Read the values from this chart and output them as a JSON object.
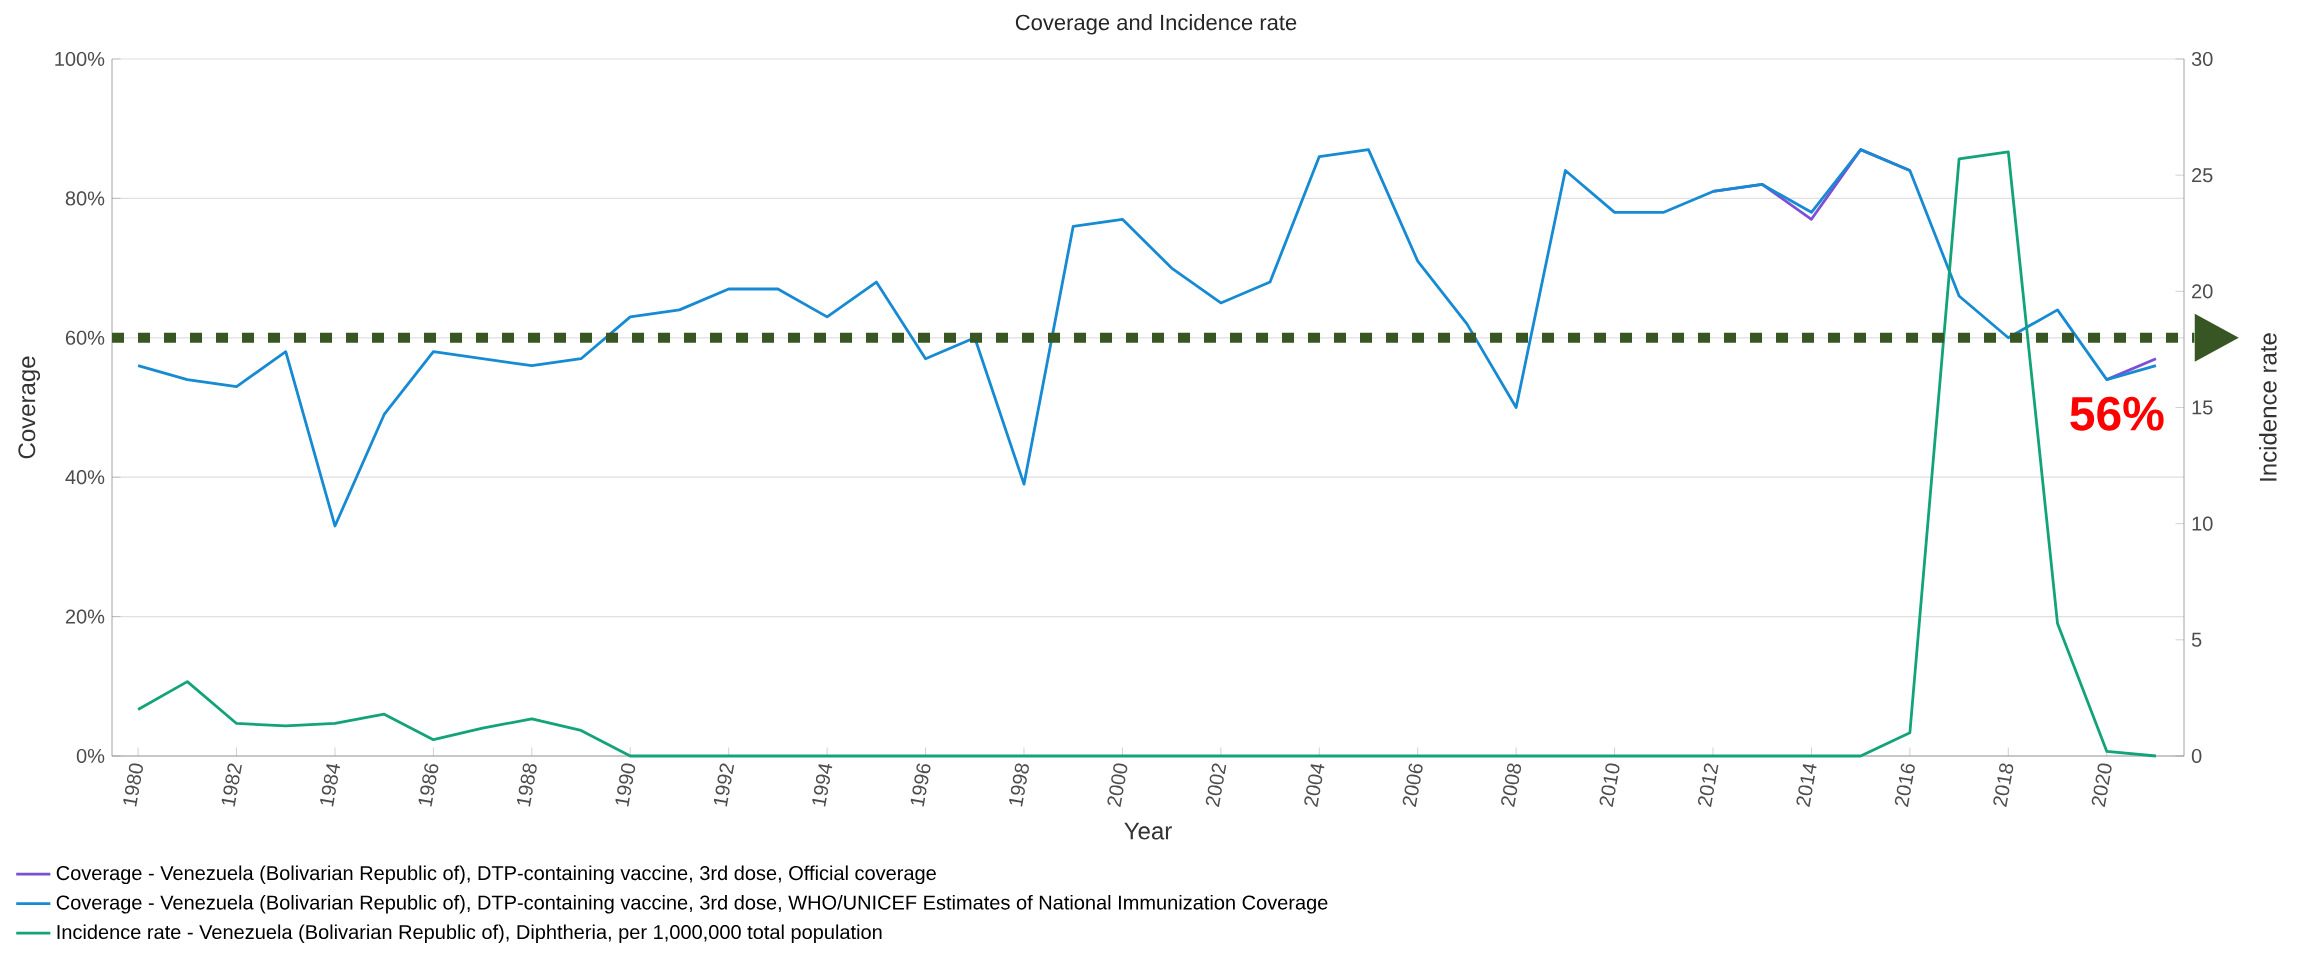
{
  "chart_data": {
    "type": "line",
    "title": "Coverage and Incidence rate",
    "xlabel": "Year",
    "ylabel": "Coverage",
    "y2label": "Incidence rate",
    "x": [
      1980,
      1981,
      1982,
      1983,
      1984,
      1985,
      1986,
      1987,
      1988,
      1989,
      1990,
      1991,
      1992,
      1993,
      1994,
      1995,
      1996,
      1997,
      1998,
      1999,
      2000,
      2001,
      2002,
      2003,
      2004,
      2005,
      2006,
      2007,
      2008,
      2009,
      2010,
      2011,
      2012,
      2013,
      2014,
      2015,
      2016,
      2017,
      2018,
      2019,
      2020,
      2021
    ],
    "series": [
      {
        "name": "Coverage - Venezuela (Bolivarian Republic of), DTP-containing vaccine, 3rd dose, Official coverage",
        "color": "#7b4fd6",
        "values": [
          null,
          null,
          null,
          null,
          null,
          null,
          null,
          null,
          null,
          null,
          null,
          null,
          null,
          null,
          null,
          null,
          null,
          null,
          null,
          null,
          null,
          null,
          null,
          null,
          null,
          null,
          null,
          null,
          null,
          null,
          null,
          null,
          81,
          82,
          77,
          87,
          84,
          null,
          null,
          null,
          54,
          57
        ]
      },
      {
        "name": "Coverage - Venezuela (Bolivarian Republic of), DTP-containing vaccine, 3rd dose, WHO/UNICEF Estimates of National Immunization Coverage",
        "color": "#168ad2",
        "values": [
          56,
          54,
          53,
          58,
          33,
          49,
          58,
          57,
          56,
          57,
          63,
          64,
          67,
          67,
          63,
          68,
          57,
          60,
          39,
          76,
          77,
          70,
          65,
          68,
          86,
          87,
          71,
          62,
          50,
          84,
          78,
          78,
          81,
          82,
          78,
          87,
          84,
          66,
          60,
          64,
          54,
          56
        ]
      },
      {
        "name": "Incidence rate - Venezuela (Bolivarian Republic of), Diphtheria, per 1,000,000 total population",
        "color": "#13a378",
        "axis": "y2",
        "values": [
          2.0,
          3.2,
          1.4,
          1.3,
          1.4,
          1.8,
          0.7,
          1.2,
          1.6,
          1.1,
          0,
          0,
          0,
          0,
          0,
          0,
          0,
          0,
          0,
          0,
          0,
          0,
          0,
          0,
          0,
          0,
          0,
          0,
          0,
          0,
          0,
          0,
          0,
          0,
          0,
          0,
          1.0,
          25.7,
          26.0,
          5.7,
          0.2,
          0
        ]
      }
    ],
    "xlim": [
      1979.47,
      2021.57
    ],
    "xticks": [
      1980,
      1982,
      1984,
      1986,
      1988,
      1990,
      1992,
      1994,
      1996,
      1998,
      2000,
      2002,
      2004,
      2006,
      2008,
      2010,
      2012,
      2014,
      2016,
      2018,
      2020
    ],
    "ylim": [
      0,
      100
    ],
    "yticks": [
      {
        "value": 0,
        "label": "0%"
      },
      {
        "value": 20,
        "label": "20%"
      },
      {
        "value": 40,
        "label": "40%"
      },
      {
        "value": 60,
        "label": "60%"
      },
      {
        "value": 80,
        "label": "80%"
      },
      {
        "value": 100,
        "label": "100%"
      }
    ],
    "y2lim": [
      0,
      30
    ],
    "y2ticks": [
      0,
      5,
      10,
      15,
      20,
      25,
      30
    ],
    "ref_lines": [
      {
        "axis": "y",
        "value": 60,
        "color": "#375623",
        "line_style": "dotted"
      }
    ],
    "annotations": [
      {
        "text": "56%",
        "x": 2021,
        "y": 56
      }
    ],
    "grid": "y",
    "legend": "bottom left",
    "marker": "none",
    "line_style": "solid"
  }
}
